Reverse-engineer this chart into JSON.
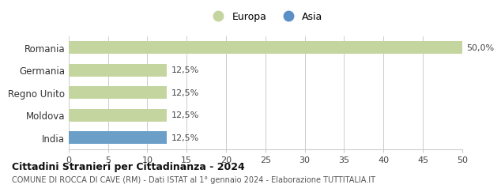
{
  "categories": [
    "Romania",
    "Germania",
    "Regno Unito",
    "Moldova",
    "India"
  ],
  "values": [
    50.0,
    12.5,
    12.5,
    12.5,
    12.5
  ],
  "bar_colors": [
    "#c5d5a0",
    "#c5d5a0",
    "#c5d5a0",
    "#c5d5a0",
    "#6b9fc8"
  ],
  "label_texts": [
    "50,0%",
    "12,5%",
    "12,5%",
    "12,5%",
    "12,5%"
  ],
  "xlim": [
    0,
    50
  ],
  "xticks": [
    0,
    5,
    10,
    15,
    20,
    25,
    30,
    35,
    40,
    45,
    50
  ],
  "legend_labels": [
    "Europa",
    "Asia"
  ],
  "legend_colors": [
    "#c5d5a0",
    "#5b8fc5"
  ],
  "title": "Cittadini Stranieri per Cittadinanza - 2024",
  "subtitle": "COMUNE DI ROCCA DI CAVE (RM) - Dati ISTAT al 1° gennaio 2024 - Elaborazione TUTTITALIA.IT",
  "bg_color": "#ffffff",
  "grid_color": "#cccccc",
  "bar_height": 0.55
}
